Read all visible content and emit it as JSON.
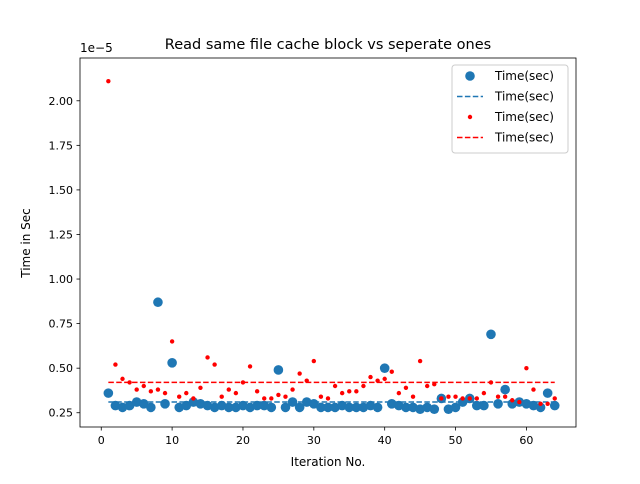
{
  "chart_data": {
    "type": "scatter",
    "title": "Read same file cache block vs seperate ones",
    "xlabel": "Iteration No.",
    "ylabel": "Time in Sec",
    "y_offset_label": "1e−5",
    "y_scale": 1e-05,
    "xlim": [
      -3,
      67
    ],
    "ylim": [
      1.7e-06,
      2.24e-05
    ],
    "grid": false,
    "legend_position": "upper right",
    "x_ticks": [
      0,
      10,
      20,
      30,
      40,
      50,
      60
    ],
    "x_tick_labels": [
      "0",
      "10",
      "20",
      "30",
      "40",
      "50",
      "60"
    ],
    "y_ticks": [
      2.5e-06,
      5e-06,
      7.5e-06,
      1e-05,
      1.25e-05,
      1.5e-05,
      1.75e-05,
      2e-05
    ],
    "y_tick_labels": [
      "0.25",
      "0.50",
      "0.75",
      "1.00",
      "1.25",
      "1.50",
      "1.75",
      "2.00"
    ],
    "series": [
      {
        "name": "Time(sec)",
        "kind": "scatter",
        "color": "#1f77b4",
        "marker_size": 4.8,
        "x": [
          1,
          2,
          3,
          4,
          5,
          6,
          7,
          8,
          9,
          10,
          11,
          12,
          13,
          14,
          15,
          16,
          17,
          18,
          19,
          20,
          21,
          22,
          23,
          24,
          25,
          26,
          27,
          28,
          29,
          30,
          31,
          32,
          33,
          34,
          35,
          36,
          37,
          38,
          39,
          40,
          41,
          42,
          43,
          44,
          45,
          46,
          47,
          48,
          49,
          50,
          51,
          52,
          53,
          54,
          55,
          56,
          57,
          58,
          59,
          60,
          61,
          62,
          63,
          64
        ],
        "y": [
          3.6e-06,
          2.9e-06,
          2.8e-06,
          2.9e-06,
          3.1e-06,
          3e-06,
          2.8e-06,
          8.7e-06,
          3e-06,
          5.3e-06,
          2.8e-06,
          2.9e-06,
          3.1e-06,
          3e-06,
          2.9e-06,
          2.8e-06,
          2.9e-06,
          2.8e-06,
          2.8e-06,
          2.9e-06,
          2.8e-06,
          2.9e-06,
          2.9e-06,
          2.8e-06,
          4.9e-06,
          2.8e-06,
          3.1e-06,
          2.8e-06,
          3.1e-06,
          3e-06,
          2.8e-06,
          2.8e-06,
          2.8e-06,
          2.9e-06,
          2.8e-06,
          2.8e-06,
          2.8e-06,
          2.9e-06,
          2.8e-06,
          5e-06,
          3e-06,
          2.9e-06,
          2.8e-06,
          2.8e-06,
          2.7e-06,
          2.8e-06,
          2.7e-06,
          3.3e-06,
          2.7e-06,
          2.8e-06,
          3.1e-06,
          3.3e-06,
          2.9e-06,
          2.9e-06,
          6.9e-06,
          3e-06,
          3.8e-06,
          3e-06,
          3.1e-06,
          3e-06,
          2.9e-06,
          2.8e-06,
          3.6e-06,
          2.9e-06
        ]
      },
      {
        "name": "Time(sec)",
        "kind": "mean_line",
        "color": "#1f77b4",
        "y": 3.1e-06,
        "x_range": [
          1,
          64
        ]
      },
      {
        "name": "Time(sec)",
        "kind": "scatter",
        "color": "#ff0000",
        "marker_size": 2.2,
        "x": [
          1,
          2,
          3,
          4,
          5,
          6,
          7,
          8,
          9,
          10,
          11,
          12,
          13,
          14,
          15,
          16,
          17,
          18,
          19,
          20,
          21,
          22,
          23,
          24,
          25,
          26,
          27,
          28,
          29,
          30,
          31,
          32,
          33,
          34,
          35,
          36,
          37,
          38,
          39,
          40,
          41,
          42,
          43,
          44,
          45,
          46,
          47,
          48,
          49,
          50,
          51,
          52,
          53,
          54,
          55,
          56,
          57,
          58,
          59,
          60,
          61,
          62,
          63,
          64
        ],
        "y": [
          2.11e-05,
          5.2e-06,
          4.4e-06,
          4.2e-06,
          3.8e-06,
          4e-06,
          3.7e-06,
          3.8e-06,
          3.6e-06,
          6.5e-06,
          3.4e-06,
          3.6e-06,
          3.3e-06,
          3.9e-06,
          5.6e-06,
          5.2e-06,
          3.4e-06,
          3.8e-06,
          3.6e-06,
          4.2e-06,
          5.1e-06,
          3.7e-06,
          3.3e-06,
          3.3e-06,
          3.5e-06,
          3.4e-06,
          3.8e-06,
          4.7e-06,
          4.3e-06,
          5.4e-06,
          3.4e-06,
          3.3e-06,
          4e-06,
          3.6e-06,
          3.7e-06,
          3.7e-06,
          4e-06,
          4.5e-06,
          4.3e-06,
          4.4e-06,
          4.8e-06,
          3.6e-06,
          3.9e-06,
          3.4e-06,
          5.4e-06,
          4e-06,
          4.1e-06,
          3.3e-06,
          3.4e-06,
          3.4e-06,
          3.3e-06,
          3.3e-06,
          3.3e-06,
          3.6e-06,
          4.2e-06,
          3.4e-06,
          3.4e-06,
          3.2e-06,
          3.1e-06,
          5e-06,
          3.8e-06,
          3e-06,
          3e-06,
          3.3e-06
        ]
      },
      {
        "name": "Time(sec)",
        "kind": "mean_line",
        "color": "#ff0000",
        "y": 4.2e-06,
        "x_range": [
          1,
          64
        ]
      }
    ]
  }
}
